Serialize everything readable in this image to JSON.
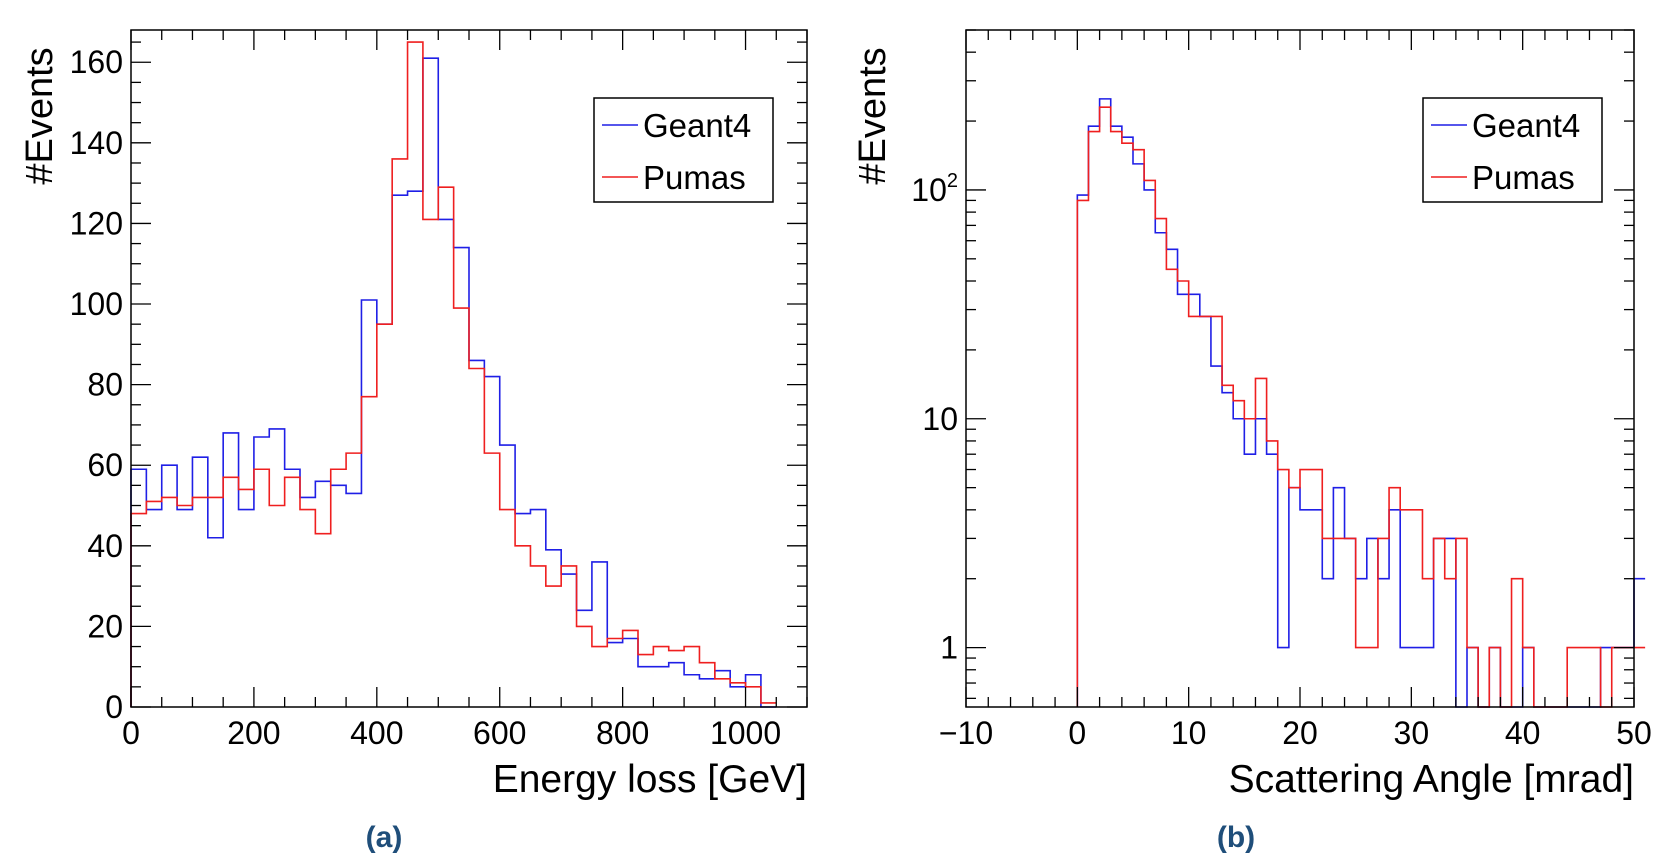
{
  "chart_data": [
    {
      "type": "histogram",
      "panel_label": "(a)",
      "xlabel": "Energy loss [GeV]",
      "ylabel": "#Events",
      "xlim": [
        0,
        1100
      ],
      "ylim": [
        0,
        168
      ],
      "y_scale": "linear",
      "grid": false,
      "legend_position": "top-right",
      "xticks": [
        0,
        200,
        400,
        600,
        800,
        1000
      ],
      "yticks": [
        0,
        20,
        40,
        60,
        80,
        100,
        120,
        140,
        160
      ],
      "x_minor_step": 50,
      "y_minor_step": 5,
      "bin_edges": [
        0,
        25,
        50,
        75,
        100,
        125,
        150,
        175,
        200,
        225,
        250,
        275,
        300,
        325,
        350,
        375,
        400,
        425,
        450,
        475,
        500,
        525,
        550,
        575,
        600,
        625,
        650,
        675,
        700,
        725,
        750,
        775,
        800,
        825,
        850,
        875,
        900,
        925,
        950,
        975,
        1000,
        1025
      ],
      "series": [
        {
          "name": "Geant4",
          "color": "#1f1fe6",
          "values": [
            59,
            49,
            60,
            49,
            62,
            42,
            68,
            49,
            67,
            69,
            59,
            52,
            56,
            55,
            53,
            101,
            95,
            127,
            128,
            161,
            121,
            114,
            86,
            82,
            65,
            48,
            49,
            39,
            33,
            24,
            36,
            16,
            17,
            10,
            10,
            11,
            8,
            7,
            9,
            5,
            8,
            0
          ]
        },
        {
          "name": "Pumas",
          "color": "#ef1f1f",
          "values": [
            48,
            51,
            52,
            50,
            52,
            52,
            57,
            54,
            59,
            50,
            57,
            49,
            43,
            59,
            63,
            77,
            95,
            136,
            165,
            121,
            129,
            99,
            84,
            63,
            49,
            40,
            35,
            30,
            35,
            20,
            15,
            17,
            19,
            13,
            15,
            14,
            15,
            11,
            7,
            6,
            5,
            1
          ]
        }
      ]
    },
    {
      "type": "histogram",
      "panel_label": "(b)",
      "xlabel": "Scattering Angle [mrad]",
      "ylabel": "#Events",
      "xlim": [
        -10,
        50
      ],
      "ylim": [
        0.55,
        500
      ],
      "y_scale": "log",
      "grid": false,
      "legend_position": "top-right",
      "xticks": [
        -10,
        0,
        10,
        20,
        30,
        40,
        50
      ],
      "xtick_labels": [
        "−10",
        "0",
        "10",
        "20",
        "30",
        "40",
        "50"
      ],
      "yticks": [
        1,
        10,
        100
      ],
      "ytick_labels": [
        "1",
        "10",
        "10²"
      ],
      "x_minor_step": 2,
      "bin_edges": [
        0,
        1,
        2,
        3,
        4,
        5,
        6,
        7,
        8,
        9,
        10,
        11,
        12,
        13,
        14,
        15,
        16,
        17,
        18,
        19,
        20,
        21,
        22,
        23,
        24,
        25,
        26,
        27,
        28,
        29,
        30,
        31,
        32,
        33,
        34,
        35,
        36,
        37,
        38,
        39,
        40,
        41,
        42,
        43,
        44,
        45,
        46,
        47,
        48,
        49,
        50
      ],
      "series": [
        {
          "name": "Geant4",
          "color": "#1f1fe6",
          "values": [
            95,
            190,
            250,
            190,
            170,
            130,
            100,
            65,
            55,
            35,
            35,
            28,
            17,
            13,
            10,
            7,
            10,
            7,
            1,
            5,
            4,
            4,
            2,
            5,
            3,
            2,
            3,
            2,
            4,
            1,
            1,
            1,
            3,
            3,
            0.4,
            1,
            0.4,
            1,
            0.4,
            0.4,
            1,
            0.4,
            0.4,
            0.4,
            0.4,
            0.4,
            0.4,
            1,
            1,
            1,
            2
          ]
        },
        {
          "name": "Pumas",
          "color": "#ef1f1f",
          "values": [
            90,
            180,
            230,
            180,
            160,
            150,
            110,
            75,
            45,
            40,
            28,
            28,
            28,
            14,
            12,
            10,
            15,
            8,
            6,
            5,
            6,
            6,
            3,
            3,
            3,
            1,
            1,
            3,
            5,
            4,
            4,
            2,
            3,
            2,
            3,
            1,
            0.4,
            1,
            0.4,
            2,
            1,
            0.4,
            0.4,
            0.4,
            1,
            1,
            1,
            0.4,
            1,
            1,
            1
          ]
        }
      ]
    }
  ]
}
